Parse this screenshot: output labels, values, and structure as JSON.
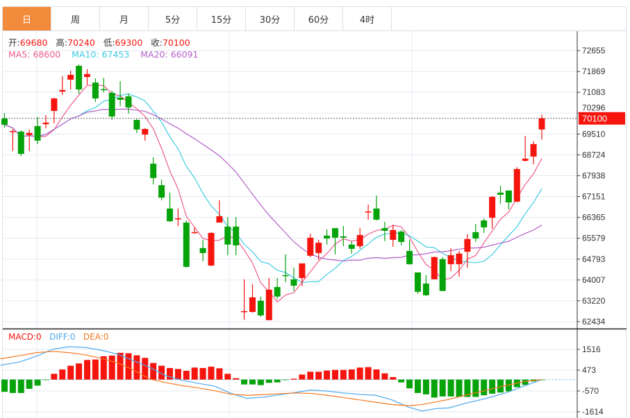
{
  "tabs": [
    {
      "label": "日",
      "active": true
    },
    {
      "label": "周",
      "active": false
    },
    {
      "label": "月",
      "active": false
    },
    {
      "label": "5分",
      "active": false
    },
    {
      "label": "15分",
      "active": false
    },
    {
      "label": "30分",
      "active": false
    },
    {
      "label": "60分",
      "active": false
    },
    {
      "label": "4时",
      "active": false
    }
  ],
  "ohlc_info": {
    "open_label": "开:",
    "open": "69680",
    "high_label": "高:",
    "high": "70240",
    "low_label": "低:",
    "low": "69300",
    "close_label": "收:",
    "close": "70100"
  },
  "ma_info": {
    "ma5": "MA5: 68600",
    "ma10": "MA10: 67453",
    "ma20": "MA20: 66091"
  },
  "macd_info": {
    "macd": "MACD:0",
    "diff": "DIFF:0",
    "dea": "DEA:0"
  },
  "colors": {
    "up": "#f5150e",
    "down": "#07a30a",
    "ma5": "#ee5a8a",
    "ma10": "#3ccbe0",
    "ma20": "#b45fc8",
    "diff": "#4aa8f0",
    "dea": "#f5781e",
    "tab_active": "#f28c3c"
  },
  "chart_data": [
    {
      "type": "candlestick",
      "title": "",
      "current_price_label": "70100",
      "y_ticks": [
        "72655",
        "71869",
        "71083",
        "70296",
        "69510",
        "68724",
        "67938",
        "67151",
        "66365",
        "65579",
        "64793",
        "64007",
        "63220",
        "62434"
      ],
      "ylim": [
        62434,
        72655
      ],
      "ohlc": [
        [
          70090,
          70300,
          69750,
          69860
        ],
        [
          69600,
          69700,
          68870,
          69620
        ],
        [
          69600,
          69650,
          68680,
          68760
        ],
        [
          69470,
          69680,
          68870,
          69550
        ],
        [
          69810,
          70150,
          69130,
          69260
        ],
        [
          69880,
          70220,
          69730,
          69940
        ],
        [
          70380,
          70880,
          69910,
          70850
        ],
        [
          71110,
          71690,
          70980,
          71170
        ],
        [
          71560,
          71900,
          71190,
          71740
        ],
        [
          72080,
          72130,
          71030,
          71190
        ],
        [
          71660,
          71950,
          71370,
          71770
        ],
        [
          71450,
          71610,
          70720,
          70850
        ],
        [
          71200,
          71630,
          71090,
          71160
        ],
        [
          71060,
          71140,
          70040,
          70170
        ],
        [
          70880,
          71500,
          70560,
          70800
        ],
        [
          70930,
          71030,
          70280,
          70510
        ],
        [
          70040,
          70070,
          69550,
          69680
        ],
        [
          69490,
          69730,
          69260,
          69700
        ],
        [
          68390,
          68630,
          67610,
          67850
        ],
        [
          67580,
          67790,
          67010,
          67110
        ],
        [
          66700,
          67300,
          66200,
          66220
        ],
        [
          66300,
          66700,
          66040,
          66330
        ],
        [
          66170,
          66250,
          64470,
          64500
        ],
        [
          65790,
          65990,
          65750,
          65810
        ],
        [
          65210,
          65520,
          64710,
          65020
        ],
        [
          64550,
          65810,
          64530,
          65780
        ],
        [
          66170,
          67010,
          66170,
          66410
        ],
        [
          66020,
          66380,
          64940,
          65340
        ],
        [
          66020,
          66380,
          64940,
          65310
        ],
        [
          62800,
          64030,
          62510,
          62830
        ],
        [
          62800,
          63850,
          62770,
          63350
        ],
        [
          63220,
          63380,
          62620,
          62670
        ],
        [
          62490,
          64080,
          62490,
          63640
        ],
        [
          63740,
          64080,
          63270,
          63380
        ],
        [
          64190,
          64970,
          63920,
          64160
        ],
        [
          64030,
          64470,
          63590,
          63790
        ],
        [
          64080,
          64630,
          63770,
          64630
        ],
        [
          64920,
          65750,
          64870,
          65600
        ],
        [
          65020,
          65520,
          64760,
          65410
        ],
        [
          65680,
          65910,
          65340,
          65570
        ],
        [
          65960,
          65960,
          64970,
          65600
        ],
        [
          65650,
          66040,
          65280,
          65600
        ],
        [
          65340,
          65470,
          65000,
          65180
        ],
        [
          65280,
          65960,
          65180,
          65700
        ],
        [
          66560,
          66850,
          66280,
          66590
        ],
        [
          66700,
          67190,
          66250,
          66280
        ],
        [
          65960,
          66200,
          65470,
          65860
        ],
        [
          65520,
          66090,
          65260,
          65890
        ],
        [
          65830,
          65890,
          65310,
          65440
        ],
        [
          65100,
          65520,
          64580,
          64600
        ],
        [
          64290,
          64290,
          63480,
          63560
        ],
        [
          63870,
          64190,
          63400,
          63430
        ],
        [
          64030,
          64890,
          64030,
          64870
        ],
        [
          64790,
          64870,
          63590,
          63590
        ],
        [
          64600,
          65210,
          64340,
          64940
        ],
        [
          64600,
          65100,
          64130,
          65000
        ],
        [
          65070,
          65730,
          64470,
          65550
        ],
        [
          65810,
          66120,
          65440,
          65570
        ],
        [
          66250,
          66330,
          65780,
          65990
        ],
        [
          66350,
          67170,
          65940,
          67140
        ],
        [
          67300,
          67560,
          66880,
          67220
        ],
        [
          67380,
          67380,
          66670,
          66930
        ],
        [
          66960,
          68260,
          66930,
          68190
        ],
        [
          68500,
          69440,
          68470,
          68580
        ],
        [
          68660,
          69230,
          68370,
          69130
        ],
        [
          69680,
          70240,
          69300,
          70100
        ]
      ],
      "ma_periods": [
        5,
        10,
        20
      ]
    },
    {
      "type": "bar",
      "title": "MACD",
      "y_ticks": [
        "1516",
        "473",
        "-570",
        "-1614"
      ],
      "ylim": [
        -1614,
        1516
      ],
      "histogram": [
        -614,
        -672,
        -672,
        -464,
        -301,
        -10,
        290,
        510,
        695,
        811,
        985,
        1008,
        1171,
        1205,
        1344,
        1321,
        1217,
        1089,
        834,
        695,
        580,
        533,
        440,
        603,
        580,
        649,
        568,
        290,
        70,
        -243,
        -243,
        -278,
        -162,
        -139,
        -5,
        46,
        255,
        394,
        394,
        452,
        487,
        487,
        510,
        603,
        626,
        510,
        313,
        127,
        -139,
        -440,
        -672,
        -742,
        -904,
        -846,
        -846,
        -869,
        -869,
        -869,
        -788,
        -707,
        -649,
        -591,
        -382,
        -267,
        -93,
        -20
      ],
      "diff": {
        "x": [
          0.5,
          2.9,
          4.9,
          6.9,
          8.8,
          10.8,
          12.7,
          14.7,
          16.6,
          18.6,
          20.5,
          22.5,
          24.4,
          26.4,
          28.3,
          30.3,
          32.3,
          34.2,
          36.2,
          38.1,
          40.1,
          42,
          44,
          45.9,
          47.9,
          49.8,
          51.5,
          53.3,
          54.7,
          56.7,
          59.1,
          61.6,
          64,
          66
        ],
        "y": [
          719,
          892,
          1182,
          1530,
          1646,
          1611,
          1472,
          1275,
          950,
          603,
          197,
          -35,
          -185,
          -325,
          -672,
          -939,
          -881,
          -765,
          -649,
          -522,
          -580,
          -672,
          -742,
          -788,
          -1020,
          -1368,
          -1576,
          -1449,
          -1426,
          -1194,
          -962,
          -672,
          -301,
          0
        ]
      },
      "dea": {
        "x": [
          0.5,
          2.9,
          4.9,
          6.9,
          8.8,
          10.8,
          12.7,
          14.7,
          16.6,
          18.6,
          20.5,
          22.5,
          24.4,
          26.4,
          28.3,
          30.3,
          32.3,
          34.2,
          36.2,
          38.1,
          40.1,
          42,
          44,
          45.9,
          47.9,
          49.8,
          51.5,
          53.3,
          54.7,
          56.7,
          59.1,
          61.6,
          64,
          66
        ],
        "y": [
          1043,
          1205,
          1356,
          1414,
          1356,
          1240,
          1066,
          834,
          487,
          23,
          -151,
          -301,
          -417,
          -556,
          -730,
          -788,
          -753,
          -707,
          -672,
          -695,
          -788,
          -904,
          -1020,
          -1136,
          -1252,
          -1310,
          -1252,
          -1113,
          -997,
          -788,
          -556,
          -301,
          -93,
          0
        ]
      }
    }
  ]
}
